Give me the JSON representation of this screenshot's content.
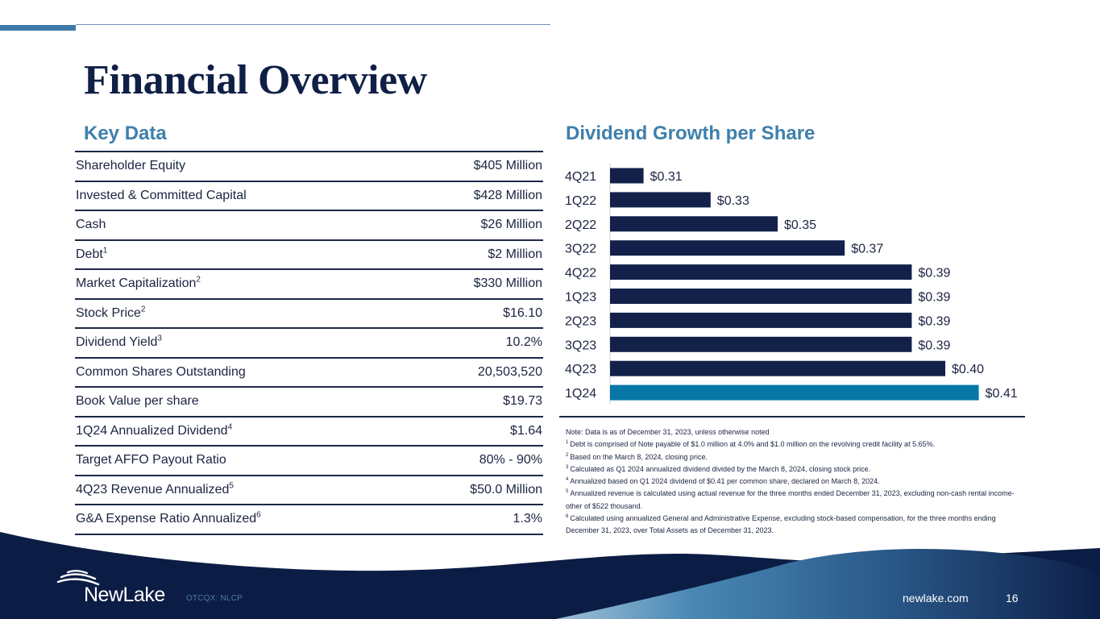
{
  "slide": {
    "title": "Financial Overview",
    "page_number": "16",
    "website": "newlake.com",
    "ticker": "OTCQX: NLCP",
    "brand_name": "NewLake"
  },
  "colors": {
    "navy": "#13214a",
    "accent_blue": "#0777a8",
    "heading_blue": "#3f7fab",
    "footer_navy": "#0c1d45"
  },
  "key_data": {
    "heading": "Key Data",
    "rows": [
      {
        "label": "Shareholder Equity",
        "sup": "",
        "value": "$405 Million"
      },
      {
        "label": "Invested & Committed Capital",
        "sup": "",
        "value": "$428 Million"
      },
      {
        "label": "Cash",
        "sup": "",
        "value": "$26 Million"
      },
      {
        "label": "Debt",
        "sup": "1",
        "value": "$2 Million"
      },
      {
        "label": "Market Capitalization",
        "sup": "2",
        "value": "$330 Million"
      },
      {
        "label": "Stock Price",
        "sup": "2",
        "value": "$16.10"
      },
      {
        "label": "Dividend Yield",
        "sup": "3",
        "value": "10.2%"
      },
      {
        "label": "Common Shares Outstanding",
        "sup": "",
        "value": "20,503,520"
      },
      {
        "label": "Book Value per share",
        "sup": "",
        "value": "$19.73"
      },
      {
        "label": "1Q24 Annualized Dividend",
        "sup": "4",
        "value": "$1.64"
      },
      {
        "label": "Target AFFO Payout Ratio",
        "sup": "",
        "value": "80% - 90%"
      },
      {
        "label": "4Q23 Revenue Annualized",
        "sup": "5",
        "value": "$50.0 Million"
      },
      {
        "label": "G&A Expense Ratio Annualized",
        "sup": "6",
        "value": "1.3%"
      }
    ]
  },
  "chart_data": {
    "type": "bar",
    "orientation": "horizontal",
    "title": "Dividend Growth per Share",
    "xlabel": "",
    "ylabel": "",
    "categories": [
      "4Q21",
      "1Q22",
      "2Q22",
      "3Q22",
      "4Q22",
      "1Q23",
      "2Q23",
      "3Q23",
      "4Q23",
      "1Q24"
    ],
    "values": [
      0.31,
      0.33,
      0.35,
      0.37,
      0.39,
      0.39,
      0.39,
      0.39,
      0.4,
      0.41
    ],
    "value_labels": [
      "$0.31",
      "$0.33",
      "$0.35",
      "$0.37",
      "$0.39",
      "$0.39",
      "$0.39",
      "$0.39",
      "$0.40",
      "$0.41"
    ],
    "highlight_index": 9,
    "xlim": [
      0.3,
      0.42
    ],
    "grid": false,
    "legend": "none"
  },
  "notes": {
    "intro": "Note: Data is as of December 31, 2023, unless otherwise noted",
    "items": [
      {
        "num": "1",
        "text": "Debt is comprised of Note payable of $1.0 million at 4.0% and $1.0 million on the revolving credit facility at 5.65%."
      },
      {
        "num": "2",
        "text": "Based on the March 8, 2024, closing price."
      },
      {
        "num": "3",
        "text": "Calculated as Q1 2024 annualized dividend divided by the March 8, 2024, closing stock price."
      },
      {
        "num": "4",
        "text": "Annualized based on Q1 2024 dividend of $0.41 per common share, declared on March 8, 2024."
      },
      {
        "num": "5",
        "text": "Annualized revenue is calculated using actual revenue for the three months ended December 31, 2023, excluding non-cash rental income-other of $522 thousand."
      },
      {
        "num": "6",
        "text": "Calculated using annualized General and Administrative Expense, excluding stock-based compensation, for the three months ending December 31, 2023, over Total Assets as of December 31, 2023."
      }
    ]
  }
}
